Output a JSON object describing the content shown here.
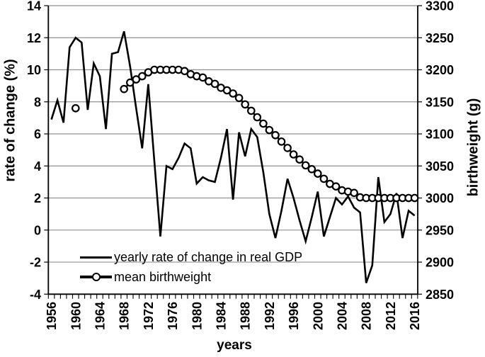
{
  "chart_data": {
    "type": "line",
    "title": "",
    "xlabel": "years",
    "grid": true,
    "legend_position": "inside-bottom-left",
    "colors": {
      "line": "#000000",
      "grid": "#919191",
      "background": "#ffffff"
    },
    "x_range": [
      1956,
      2016
    ],
    "x_ticks": [
      1956,
      1960,
      1964,
      1968,
      1972,
      1976,
      1980,
      1984,
      1988,
      1992,
      1996,
      2000,
      2004,
      2008,
      2012,
      2016
    ],
    "y_left": {
      "title": "rate of change (%)",
      "range": [
        -4,
        14
      ],
      "ticks": [
        14,
        12,
        10,
        8,
        6,
        4,
        2,
        0,
        -2,
        -4
      ]
    },
    "y_right": {
      "title": "birthweight (g)",
      "range": [
        2850,
        3300
      ],
      "ticks": [
        3300,
        3250,
        3200,
        3150,
        3100,
        3050,
        3000,
        2950,
        2900,
        2850
      ]
    },
    "series": [
      {
        "name": "yearly rate of change in real GDP",
        "axis": "left",
        "style": "line",
        "years": [
          1956,
          1957,
          1958,
          1959,
          1960,
          1961,
          1962,
          1963,
          1964,
          1965,
          1966,
          1967,
          1968,
          1969,
          1970,
          1971,
          1972,
          1973,
          1974,
          1975,
          1976,
          1977,
          1978,
          1979,
          1980,
          1981,
          1982,
          1983,
          1984,
          1985,
          1986,
          1987,
          1988,
          1989,
          1990,
          1991,
          1992,
          1993,
          1994,
          1995,
          1996,
          1997,
          1998,
          1999,
          2000,
          2001,
          2002,
          2003,
          2004,
          2005,
          2006,
          2007,
          2008,
          2009,
          2010,
          2011,
          2012,
          2013,
          2014,
          2015,
          2016
        ],
        "values": [
          6.9,
          8.1,
          6.7,
          11.4,
          12,
          11.7,
          7.5,
          10.4,
          9.6,
          6.3,
          11,
          11.1,
          12.4,
          10.2,
          7.6,
          5.1,
          9.1,
          4.3,
          -0.4,
          4,
          3.8,
          4.5,
          5.4,
          5.1,
          2.9,
          3.3,
          3.1,
          3,
          4.5,
          6.3,
          1.9,
          6.1,
          4.6,
          6.3,
          5.8,
          3.6,
          1,
          -0.5,
          1.2,
          3.2,
          2,
          0.6,
          -0.7,
          0.8,
          2.4,
          -0.4,
          0.8,
          2,
          1.6,
          2.1,
          1.4,
          1.1,
          -3.3,
          -2.2,
          3.3,
          0.5,
          1,
          2.3,
          -0.5,
          1.2,
          0.9
        ]
      },
      {
        "name": "mean birthweight",
        "axis": "right",
        "style": "line+circle",
        "years": [
          1960,
          1968,
          1969,
          1970,
          1971,
          1972,
          1973,
          1974,
          1975,
          1976,
          1977,
          1978,
          1979,
          1980,
          1981,
          1982,
          1983,
          1984,
          1985,
          1986,
          1987,
          1988,
          1989,
          1990,
          1991,
          1992,
          1993,
          1994,
          1995,
          1996,
          1997,
          1998,
          1999,
          2000,
          2001,
          2002,
          2003,
          2004,
          2005,
          2006,
          2007,
          2008,
          2009,
          2010,
          2011,
          2012,
          2013,
          2014,
          2015,
          2016
        ],
        "values": [
          3140,
          3170,
          3180,
          3185,
          3190,
          3196,
          3200,
          3200,
          3200,
          3200,
          3200,
          3198,
          3193,
          3190,
          3188,
          3182,
          3178,
          3172,
          3168,
          3163,
          3156,
          3146,
          3136,
          3126,
          3116,
          3106,
          3098,
          3088,
          3078,
          3068,
          3060,
          3051,
          3045,
          3038,
          3030,
          3022,
          3018,
          3012,
          3010,
          3008,
          3001,
          3000,
          3000,
          3000,
          3000,
          3000,
          3000,
          3000,
          3000,
          3000
        ]
      }
    ]
  }
}
